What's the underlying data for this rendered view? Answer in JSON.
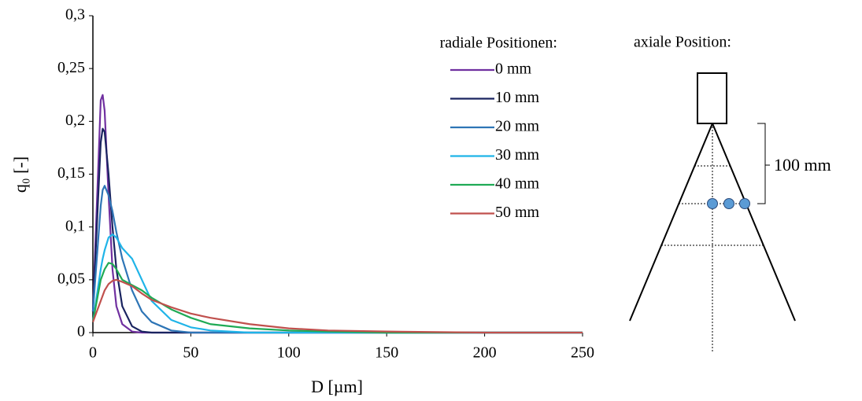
{
  "chart_data": {
    "type": "line",
    "x_label": "D [µm]",
    "y_label": "q₀ [-]",
    "legend_title": "radiale Positionen:",
    "legend_position": "upper right",
    "x": [
      0,
      2,
      4,
      5,
      6,
      8,
      10,
      12,
      15,
      20,
      25,
      30,
      40,
      50,
      60,
      80,
      100,
      120,
      150,
      200,
      250
    ],
    "series": [
      {
        "name": "0 mm",
        "color": "#7030a0",
        "values": [
          0.02,
          0.12,
          0.22,
          0.225,
          0.21,
          0.13,
          0.06,
          0.025,
          0.008,
          0.001,
          0,
          0,
          0,
          0,
          0,
          0,
          0,
          0,
          0,
          0,
          0
        ]
      },
      {
        "name": "10 mm",
        "color": "#1a2460",
        "values": [
          0.02,
          0.1,
          0.18,
          0.193,
          0.19,
          0.15,
          0.1,
          0.06,
          0.025,
          0.006,
          0.001,
          0,
          0,
          0,
          0,
          0,
          0,
          0,
          0,
          0,
          0
        ]
      },
      {
        "name": "20 mm",
        "color": "#2e75b6",
        "values": [
          0.02,
          0.07,
          0.12,
          0.135,
          0.139,
          0.13,
          0.115,
          0.095,
          0.07,
          0.04,
          0.02,
          0.01,
          0.002,
          0,
          0,
          0,
          0,
          0,
          0,
          0,
          0
        ]
      },
      {
        "name": "30 mm",
        "color": "#1fb4e8",
        "values": [
          0.01,
          0.035,
          0.06,
          0.07,
          0.078,
          0.09,
          0.093,
          0.09,
          0.08,
          0.07,
          0.05,
          0.03,
          0.012,
          0.005,
          0.002,
          0,
          0,
          0,
          0,
          0,
          0
        ]
      },
      {
        "name": "40 mm",
        "color": "#1faa55",
        "values": [
          0.01,
          0.03,
          0.05,
          0.055,
          0.06,
          0.066,
          0.065,
          0.06,
          0.05,
          0.045,
          0.04,
          0.033,
          0.022,
          0.014,
          0.008,
          0.004,
          0.002,
          0.001,
          0,
          0,
          0
        ]
      },
      {
        "name": "50 mm",
        "color": "#c0504d",
        "values": [
          0.01,
          0.02,
          0.03,
          0.035,
          0.04,
          0.046,
          0.049,
          0.05,
          0.048,
          0.044,
          0.037,
          0.031,
          0.024,
          0.018,
          0.014,
          0.008,
          0.004,
          0.002,
          0.001,
          0,
          0
        ]
      }
    ],
    "xlim": [
      0,
      250
    ],
    "xticks": [
      0,
      50,
      100,
      150,
      200,
      250
    ],
    "ylim": [
      0,
      0.3
    ],
    "yticks": [
      0,
      {
        "value": 0.05,
        "label": "0,05"
      },
      {
        "value": 0.1,
        "label": "0,1"
      },
      {
        "value": 0.15,
        "label": "0,15"
      },
      {
        "value": 0.2,
        "label": "0,2"
      },
      {
        "value": 0.25,
        "label": "0,25"
      },
      {
        "value": 0.3,
        "label": "0,3"
      }
    ],
    "grid": false
  },
  "diagram": {
    "title": "axiale Position:",
    "dimension_label": "100 mm"
  }
}
